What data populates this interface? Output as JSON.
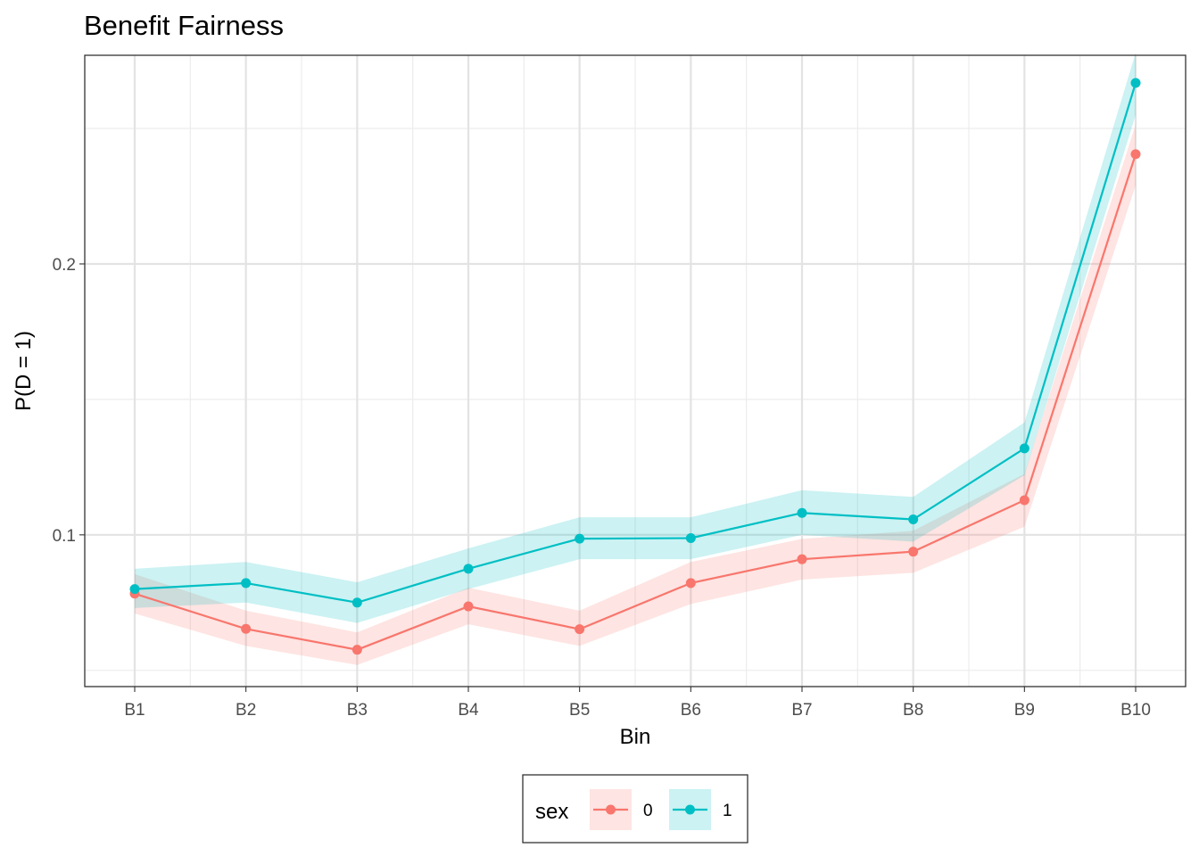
{
  "chart_data": {
    "type": "line",
    "title": "Benefit Fairness",
    "xlabel": "Bin",
    "ylabel": "P(D = 1)",
    "categories": [
      "B1",
      "B2",
      "B3",
      "B4",
      "B5",
      "B6",
      "B7",
      "B8",
      "B9",
      "B10"
    ],
    "ylim": [
      0.044,
      0.277
    ],
    "yticks": [
      0.1,
      0.2
    ],
    "ytick_labels": [
      "0.1",
      "0.2"
    ],
    "y_minor_ticks": [
      0.05,
      0.15,
      0.25
    ],
    "grid": true,
    "legend": {
      "title": "sex",
      "position": "bottom"
    },
    "series": [
      {
        "name": "0",
        "color": "#F8766D",
        "values": [
          0.0783,
          0.0653,
          0.0576,
          0.0736,
          0.0652,
          0.0822,
          0.091,
          0.0938,
          0.1128,
          0.2405
        ],
        "lower": [
          0.071,
          0.059,
          0.052,
          0.067,
          0.059,
          0.0745,
          0.0835,
          0.086,
          0.103,
          0.229
        ],
        "upper": [
          0.0855,
          0.072,
          0.064,
          0.0805,
          0.072,
          0.09,
          0.0985,
          0.1015,
          0.1225,
          0.2515
        ]
      },
      {
        "name": "1",
        "color": "#00BFC4",
        "values": [
          0.08,
          0.0822,
          0.075,
          0.0875,
          0.0986,
          0.0988,
          0.1081,
          0.1057,
          0.1319,
          0.2668
        ],
        "lower": [
          0.073,
          0.075,
          0.0675,
          0.08,
          0.091,
          0.091,
          0.1,
          0.0975,
          0.122,
          0.255
        ],
        "upper": [
          0.0875,
          0.09,
          0.0825,
          0.095,
          0.1065,
          0.1065,
          0.1165,
          0.114,
          0.1415,
          0.278
        ]
      }
    ]
  }
}
